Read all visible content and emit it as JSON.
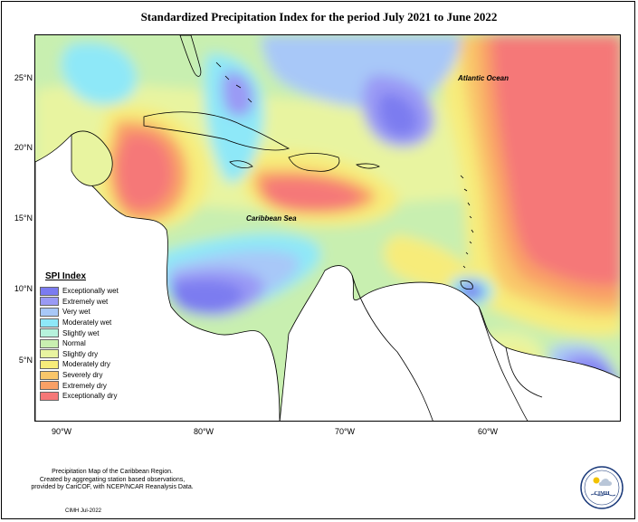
{
  "title": "Standardized Precipitation Index for the period July 2021 to June 2022",
  "latitude_labels": [
    "25°N",
    "20°N",
    "15°N",
    "10°N",
    "5°N"
  ],
  "longitude_labels": [
    "90°W",
    "80°W",
    "70°W",
    "60°W"
  ],
  "ocean_labels": {
    "atlantic": "Atlantic Ocean",
    "caribbean": "Caribbean Sea"
  },
  "legend": {
    "title": "SPI Index",
    "items": [
      {
        "label": "Exceptionally wet",
        "color": "#7b7bf0"
      },
      {
        "label": "Extremely wet",
        "color": "#9a9af5"
      },
      {
        "label": "Very wet",
        "color": "#a8c8f8"
      },
      {
        "label": "Moderately wet",
        "color": "#8ee8f8"
      },
      {
        "label": "Slightly wet",
        "color": "#b6f2dc"
      },
      {
        "label": "Normal",
        "color": "#c8efb0"
      },
      {
        "label": "Slightly dry",
        "color": "#e8f4a0"
      },
      {
        "label": "Moderately dry",
        "color": "#f7ec7a"
      },
      {
        "label": "Severely dry",
        "color": "#f9c66a"
      },
      {
        "label": "Extremely dry",
        "color": "#f9a066"
      },
      {
        "label": "Exceptionally dry",
        "color": "#f57878"
      }
    ]
  },
  "footer": {
    "line1": "Precipitation Map of the Caribbean Region.",
    "line2": "Created by aggregating station based observations,",
    "line3": "provided by CariCOF, with NCEP/NCAR Reanalysis Data.",
    "date": "CIMH Jul-2022"
  },
  "logo_text": "CIMH"
}
